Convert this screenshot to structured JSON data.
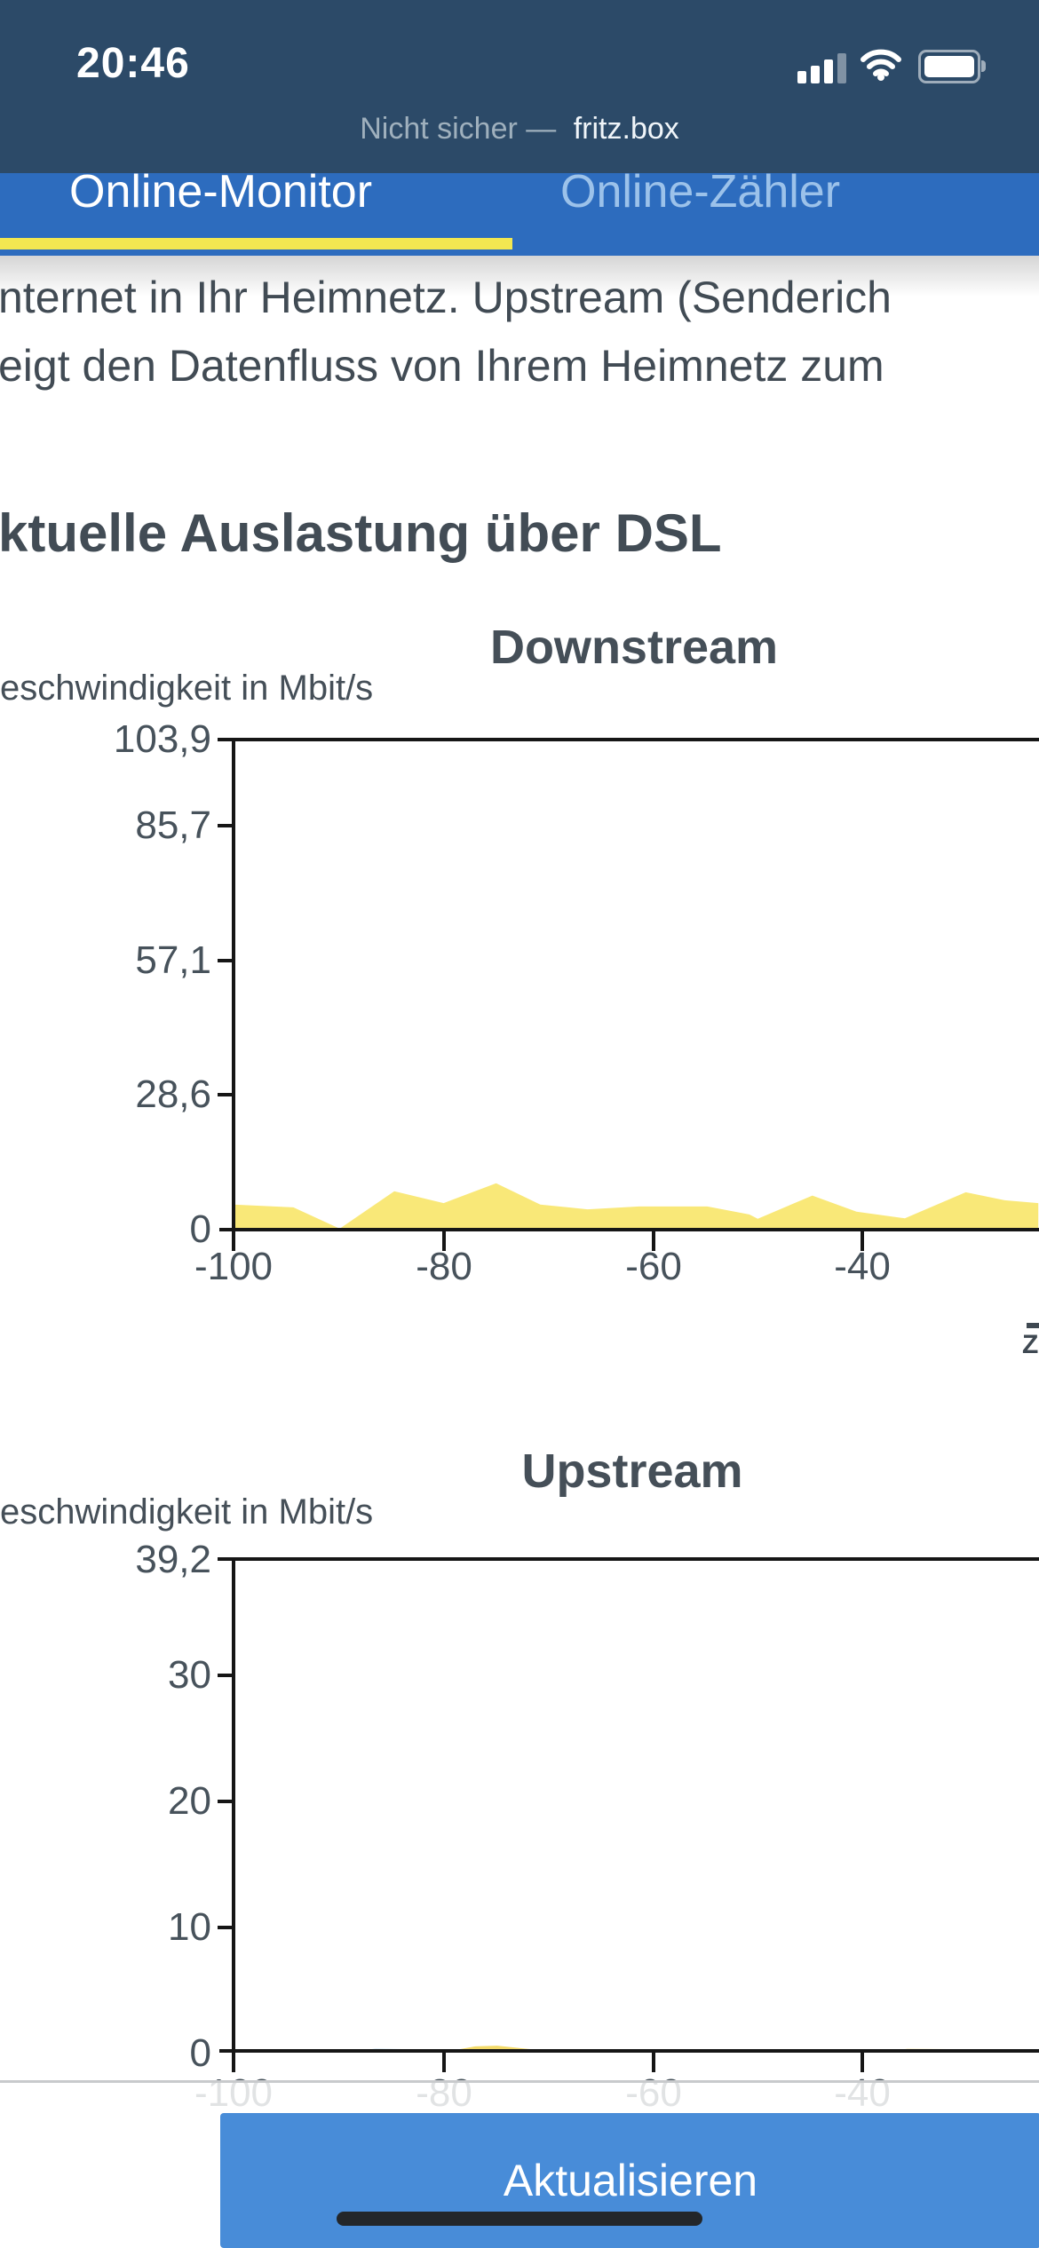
{
  "status_bar": {
    "time": "20:46",
    "security_text": "Nicht sicher —",
    "host": "fritz.box",
    "signal_bars_filled": 3,
    "signal_bars_total": 4
  },
  "tabs": {
    "active": "Online-Monitor",
    "inactive": "Online-Zähler"
  },
  "page": {
    "hidden_heading": "Online-Monitor",
    "intro_line1": "nternet in Ihr Heimnetz. Upstream (Senderich",
    "intro_line2": "eigt den Datenfluss von Ihrem Heimnetz zum",
    "section_heading": "ktuelle Auslastung über DSL"
  },
  "chart_data": [
    {
      "type": "area",
      "title": "Downstream",
      "y_axis_label": "eschwindigkeit in Mbit/s",
      "x_axis_label_cut": "Zeit",
      "xlim": [
        -100,
        -23.33
      ],
      "ylim": [
        0,
        103.9
      ],
      "y_tick_values": [
        103.9,
        85.7,
        57.1,
        28.6,
        0
      ],
      "y_tick_labels": [
        "103,9",
        "85,7",
        "57,1",
        "28,6",
        "0"
      ],
      "x_tick_values": [
        -100,
        -80,
        -60,
        -40
      ],
      "x_tick_labels": [
        "-100",
        "-80",
        "-60",
        "-40"
      ],
      "grid": false,
      "legend": false,
      "series": [
        {
          "name": "downstream-mbit",
          "color": "#f9e878",
          "points": [
            [
              -100,
              5.3
            ],
            [
              -94.3,
              4.7
            ],
            [
              -89.9,
              0.2
            ],
            [
              -84.7,
              8.1
            ],
            [
              -80,
              5.6
            ],
            [
              -75,
              9.8
            ],
            [
              -70.8,
              5.3
            ],
            [
              -66.3,
              4.3
            ],
            [
              -61.4,
              4.9
            ],
            [
              -54.9,
              4.9
            ],
            [
              -50.9,
              3.2
            ],
            [
              -50.1,
              2.3
            ],
            [
              -44.9,
              7.2
            ],
            [
              -40.7,
              3.8
            ],
            [
              -36.1,
              2.4
            ],
            [
              -30.3,
              7.9
            ],
            [
              -26.6,
              6.2
            ],
            [
              -23.4,
              5.6
            ]
          ]
        }
      ]
    },
    {
      "type": "area",
      "title": "Upstream",
      "y_axis_label": "eschwindigkeit in Mbit/s",
      "xlim": [
        -100,
        -23.33
      ],
      "ylim": [
        0,
        39.2
      ],
      "y_tick_values": [
        39.2,
        30,
        20,
        10,
        0
      ],
      "y_tick_labels": [
        "39,2",
        "30",
        "20",
        "10",
        "0"
      ],
      "x_tick_values": [
        -100,
        -80,
        -60,
        -40
      ],
      "x_tick_labels": [
        "-100",
        "-80",
        "-60",
        "-40"
      ],
      "grid": false,
      "legend": false,
      "series": [
        {
          "name": "upstream-blue",
          "color": "#82bcdd",
          "points": [
            [
              -89.5,
              0.02
            ],
            [
              -87.7,
              0.24
            ],
            [
              -86.5,
              0.3
            ],
            [
              -83.9,
              0.28
            ],
            [
              -82.3,
              0.12
            ],
            [
              -81,
              0.02
            ]
          ]
        },
        {
          "name": "upstream-mbit",
          "color": "#f3da69",
          "points": [
            [
              -100,
              0.05
            ],
            [
              -90,
              0.05
            ],
            [
              -84,
              0.07
            ],
            [
              -79.5,
              0.12
            ],
            [
              -77,
              0.5
            ],
            [
              -74.9,
              0.56
            ],
            [
              -72,
              0.3
            ],
            [
              -69.8,
              0.15
            ],
            [
              -65,
              0.1
            ],
            [
              -60,
              0.06
            ],
            [
              -52,
              0.1
            ],
            [
              -48.4,
              0.15
            ],
            [
              -42.2,
              0.12
            ],
            [
              -38,
              0.1
            ],
            [
              -35.9,
              0.3
            ],
            [
              -32,
              0.28
            ],
            [
              -29.3,
              0.2
            ],
            [
              -26,
              0.16
            ],
            [
              -23.4,
              0.12
            ]
          ]
        }
      ]
    }
  ],
  "footer": {
    "refresh_label": "Aktualisieren"
  },
  "colors": {
    "status_bar_bg": "#2c4a68",
    "tab_bar_bg": "#2d6cbe",
    "active_tab_underline": "#f2e751",
    "inactive_tab_text": "#9cc2ea",
    "body_text": "#414b54",
    "axis": "#161616",
    "chart_fill_yellow": "#f9e878",
    "chart_fill_blue": "#82bcdd",
    "button_bg": "#488cd8",
    "faded_hairline": "#c8cacc"
  }
}
